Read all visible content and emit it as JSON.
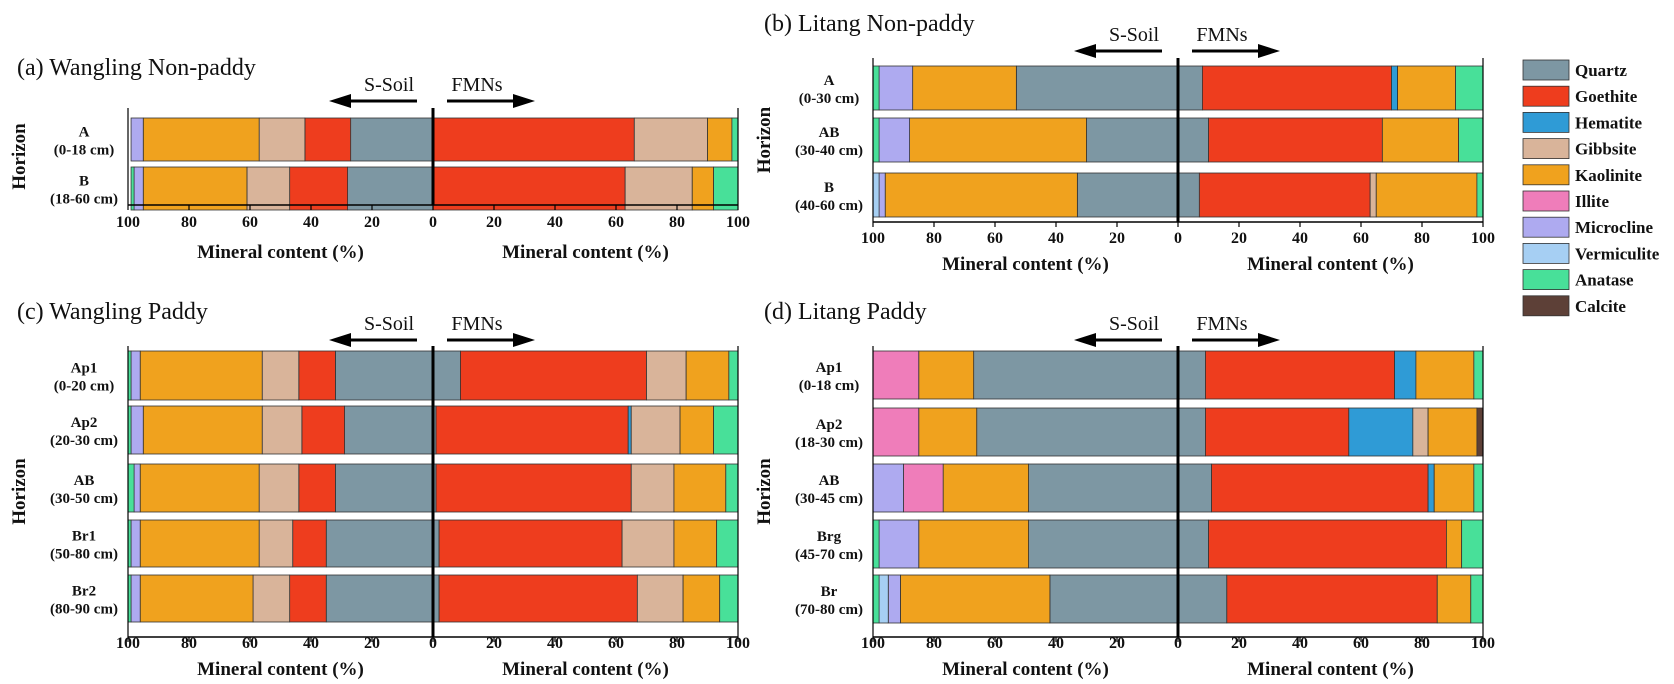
{
  "colors": {
    "Quartz": "#7d97a3",
    "Goethite": "#ee3d1e",
    "Hematite": "#2f9bd6",
    "Gibbsite": "#d9b49a",
    "Kaolinite": "#f0a21e",
    "Illite": "#ef7dba",
    "Microcline": "#aeaaf0",
    "Vermiculite": "#a6cff3",
    "Anatase": "#48e099",
    "Calcite": "#5d4037"
  },
  "legend": [
    "Quartz",
    "Goethite",
    "Hematite",
    "Gibbsite",
    "Kaolinite",
    "Illite",
    "Microcline",
    "Vermiculite",
    "Anatase",
    "Calcite"
  ],
  "arrows": {
    "left": "S-Soil",
    "right": "FMNs"
  },
  "axis": {
    "xlabel": "Mineral content (%)",
    "ylabel": "Horizon",
    "ticks": [
      "100",
      "80",
      "60",
      "40",
      "20",
      "0",
      "20",
      "40",
      "60",
      "80",
      "100"
    ]
  },
  "chart_data": [
    {
      "type": "bar",
      "title": "(a) Wangling Non-paddy",
      "xlabel": "Mineral content (%)",
      "ylabel": "Horizon",
      "xlim": [
        0,
        100
      ],
      "rows": [
        {
          "label": "A",
          "depth": "(0-18 cm)",
          "soil": [
            {
              "m": "Quartz",
              "v": 27
            },
            {
              "m": "Goethite",
              "v": 15
            },
            {
              "m": "Gibbsite",
              "v": 15
            },
            {
              "m": "Kaolinite",
              "v": 38
            },
            {
              "m": "Microcline",
              "v": 4
            }
          ],
          "fmn": [
            {
              "m": "Goethite",
              "v": 66
            },
            {
              "m": "Gibbsite",
              "v": 24
            },
            {
              "m": "Kaolinite",
              "v": 8
            },
            {
              "m": "Anatase",
              "v": 2
            }
          ]
        },
        {
          "label": "B",
          "depth": "(18-60 cm)",
          "soil": [
            {
              "m": "Quartz",
              "v": 28
            },
            {
              "m": "Goethite",
              "v": 19
            },
            {
              "m": "Gibbsite",
              "v": 14
            },
            {
              "m": "Kaolinite",
              "v": 34
            },
            {
              "m": "Microcline",
              "v": 3
            },
            {
              "m": "Anatase",
              "v": 1
            }
          ],
          "fmn": [
            {
              "m": "Goethite",
              "v": 63
            },
            {
              "m": "Gibbsite",
              "v": 22
            },
            {
              "m": "Kaolinite",
              "v": 7
            },
            {
              "m": "Anatase",
              "v": 8
            }
          ]
        }
      ]
    },
    {
      "type": "bar",
      "title": "(b) Litang Non-paddy",
      "xlabel": "Mineral content (%)",
      "ylabel": "Horizon",
      "xlim": [
        0,
        100
      ],
      "rows": [
        {
          "label": "A",
          "depth": "(0-30 cm)",
          "soil": [
            {
              "m": "Quartz",
              "v": 53
            },
            {
              "m": "Kaolinite",
              "v": 34
            },
            {
              "m": "Microcline",
              "v": 11
            },
            {
              "m": "Anatase",
              "v": 2
            }
          ],
          "fmn": [
            {
              "m": "Quartz",
              "v": 8
            },
            {
              "m": "Goethite",
              "v": 62
            },
            {
              "m": "Hematite",
              "v": 2
            },
            {
              "m": "Kaolinite",
              "v": 19
            },
            {
              "m": "Anatase",
              "v": 9
            }
          ]
        },
        {
          "label": "AB",
          "depth": "(30-40 cm)",
          "soil": [
            {
              "m": "Quartz",
              "v": 30
            },
            {
              "m": "Kaolinite",
              "v": 58
            },
            {
              "m": "Microcline",
              "v": 10
            },
            {
              "m": "Anatase",
              "v": 2
            }
          ],
          "fmn": [
            {
              "m": "Quartz",
              "v": 10
            },
            {
              "m": "Goethite",
              "v": 57
            },
            {
              "m": "Kaolinite",
              "v": 25
            },
            {
              "m": "Anatase",
              "v": 8
            }
          ]
        },
        {
          "label": "B",
          "depth": "(40-60 cm)",
          "soil": [
            {
              "m": "Quartz",
              "v": 33
            },
            {
              "m": "Kaolinite",
              "v": 63
            },
            {
              "m": "Microcline",
              "v": 2
            },
            {
              "m": "Vermiculite",
              "v": 2
            }
          ],
          "fmn": [
            {
              "m": "Quartz",
              "v": 7
            },
            {
              "m": "Goethite",
              "v": 56
            },
            {
              "m": "Gibbsite",
              "v": 2
            },
            {
              "m": "Kaolinite",
              "v": 33
            },
            {
              "m": "Anatase",
              "v": 2
            }
          ]
        }
      ]
    },
    {
      "type": "bar",
      "title": "(c) Wangling Paddy",
      "xlabel": "Mineral content (%)",
      "ylabel": "Horizon",
      "xlim": [
        0,
        100
      ],
      "rows": [
        {
          "label": "Ap1",
          "depth": "(0-20 cm)",
          "soil": [
            {
              "m": "Quartz",
              "v": 32
            },
            {
              "m": "Goethite",
              "v": 12
            },
            {
              "m": "Gibbsite",
              "v": 12
            },
            {
              "m": "Kaolinite",
              "v": 40
            },
            {
              "m": "Microcline",
              "v": 3
            },
            {
              "m": "Anatase",
              "v": 1
            }
          ],
          "fmn": [
            {
              "m": "Quartz",
              "v": 9
            },
            {
              "m": "Goethite",
              "v": 61
            },
            {
              "m": "Gibbsite",
              "v": 13
            },
            {
              "m": "Kaolinite",
              "v": 14
            },
            {
              "m": "Anatase",
              "v": 3
            }
          ]
        },
        {
          "label": "Ap2",
          "depth": "(20-30 cm)",
          "soil": [
            {
              "m": "Quartz",
              "v": 29
            },
            {
              "m": "Goethite",
              "v": 14
            },
            {
              "m": "Gibbsite",
              "v": 13
            },
            {
              "m": "Kaolinite",
              "v": 39
            },
            {
              "m": "Microcline",
              "v": 4
            },
            {
              "m": "Anatase",
              "v": 1
            }
          ],
          "fmn": [
            {
              "m": "Quartz",
              "v": 1
            },
            {
              "m": "Goethite",
              "v": 63
            },
            {
              "m": "Hematite",
              "v": 1
            },
            {
              "m": "Gibbsite",
              "v": 16
            },
            {
              "m": "Kaolinite",
              "v": 11
            },
            {
              "m": "Anatase",
              "v": 8
            }
          ]
        },
        {
          "label": "AB",
          "depth": "(30-50 cm)",
          "soil": [
            {
              "m": "Quartz",
              "v": 32
            },
            {
              "m": "Goethite",
              "v": 12
            },
            {
              "m": "Gibbsite",
              "v": 13
            },
            {
              "m": "Kaolinite",
              "v": 39
            },
            {
              "m": "Microcline",
              "v": 2
            },
            {
              "m": "Anatase",
              "v": 2
            }
          ],
          "fmn": [
            {
              "m": "Quartz",
              "v": 1
            },
            {
              "m": "Goethite",
              "v": 64
            },
            {
              "m": "Gibbsite",
              "v": 14
            },
            {
              "m": "Kaolinite",
              "v": 17
            },
            {
              "m": "Anatase",
              "v": 4
            }
          ]
        },
        {
          "label": "Br1",
          "depth": "(50-80 cm)",
          "soil": [
            {
              "m": "Quartz",
              "v": 35
            },
            {
              "m": "Goethite",
              "v": 11
            },
            {
              "m": "Gibbsite",
              "v": 11
            },
            {
              "m": "Kaolinite",
              "v": 39
            },
            {
              "m": "Microcline",
              "v": 3
            },
            {
              "m": "Anatase",
              "v": 1
            }
          ],
          "fmn": [
            {
              "m": "Quartz",
              "v": 2
            },
            {
              "m": "Goethite",
              "v": 60
            },
            {
              "m": "Gibbsite",
              "v": 17
            },
            {
              "m": "Kaolinite",
              "v": 14
            },
            {
              "m": "Anatase",
              "v": 7
            }
          ]
        },
        {
          "label": "Br2",
          "depth": "(80-90 cm)",
          "soil": [
            {
              "m": "Quartz",
              "v": 35
            },
            {
              "m": "Goethite",
              "v": 12
            },
            {
              "m": "Gibbsite",
              "v": 12
            },
            {
              "m": "Kaolinite",
              "v": 37
            },
            {
              "m": "Microcline",
              "v": 3
            },
            {
              "m": "Anatase",
              "v": 1
            }
          ],
          "fmn": [
            {
              "m": "Quartz",
              "v": 2
            },
            {
              "m": "Goethite",
              "v": 65
            },
            {
              "m": "Gibbsite",
              "v": 15
            },
            {
              "m": "Kaolinite",
              "v": 12
            },
            {
              "m": "Anatase",
              "v": 6
            }
          ]
        }
      ]
    },
    {
      "type": "bar",
      "title": "(d) Litang Paddy",
      "xlabel": "Mineral content (%)",
      "ylabel": "Horizon",
      "xlim": [
        0,
        100
      ],
      "rows": [
        {
          "label": "Ap1",
          "depth": "(0-18 cm)",
          "soil": [
            {
              "m": "Quartz",
              "v": 67
            },
            {
              "m": "Kaolinite",
              "v": 18
            },
            {
              "m": "Illite",
              "v": 15
            }
          ],
          "fmn": [
            {
              "m": "Quartz",
              "v": 9
            },
            {
              "m": "Goethite",
              "v": 62
            },
            {
              "m": "Hematite",
              "v": 7
            },
            {
              "m": "Kaolinite",
              "v": 19
            },
            {
              "m": "Anatase",
              "v": 3
            }
          ]
        },
        {
          "label": "Ap2",
          "depth": "(18-30 cm)",
          "soil": [
            {
              "m": "Quartz",
              "v": 66
            },
            {
              "m": "Kaolinite",
              "v": 19
            },
            {
              "m": "Illite",
              "v": 15
            }
          ],
          "fmn": [
            {
              "m": "Quartz",
              "v": 9
            },
            {
              "m": "Goethite",
              "v": 47
            },
            {
              "m": "Hematite",
              "v": 21
            },
            {
              "m": "Gibbsite",
              "v": 5
            },
            {
              "m": "Kaolinite",
              "v": 16
            },
            {
              "m": "Calcite",
              "v": 2
            }
          ]
        },
        {
          "label": "AB",
          "depth": "(30-45 cm)",
          "soil": [
            {
              "m": "Quartz",
              "v": 49
            },
            {
              "m": "Kaolinite",
              "v": 28
            },
            {
              "m": "Illite",
              "v": 13
            },
            {
              "m": "Microcline",
              "v": 10
            }
          ],
          "fmn": [
            {
              "m": "Quartz",
              "v": 11
            },
            {
              "m": "Goethite",
              "v": 71
            },
            {
              "m": "Hematite",
              "v": 2
            },
            {
              "m": "Kaolinite",
              "v": 13
            },
            {
              "m": "Anatase",
              "v": 3
            }
          ]
        },
        {
          "label": "Brg",
          "depth": "(45-70 cm)",
          "soil": [
            {
              "m": "Quartz",
              "v": 49
            },
            {
              "m": "Kaolinite",
              "v": 36
            },
            {
              "m": "Microcline",
              "v": 13
            },
            {
              "m": "Anatase",
              "v": 2
            }
          ],
          "fmn": [
            {
              "m": "Quartz",
              "v": 10
            },
            {
              "m": "Goethite",
              "v": 78
            },
            {
              "m": "Kaolinite",
              "v": 5
            },
            {
              "m": "Anatase",
              "v": 7
            }
          ]
        },
        {
          "label": "Br",
          "depth": "(70-80 cm)",
          "soil": [
            {
              "m": "Quartz",
              "v": 42
            },
            {
              "m": "Kaolinite",
              "v": 49
            },
            {
              "m": "Microcline",
              "v": 4
            },
            {
              "m": "Vermiculite",
              "v": 3
            },
            {
              "m": "Anatase",
              "v": 2
            }
          ],
          "fmn": [
            {
              "m": "Quartz",
              "v": 16
            },
            {
              "m": "Goethite",
              "v": 69
            },
            {
              "m": "Kaolinite",
              "v": 11
            },
            {
              "m": "Anatase",
              "v": 4
            }
          ]
        }
      ]
    }
  ]
}
